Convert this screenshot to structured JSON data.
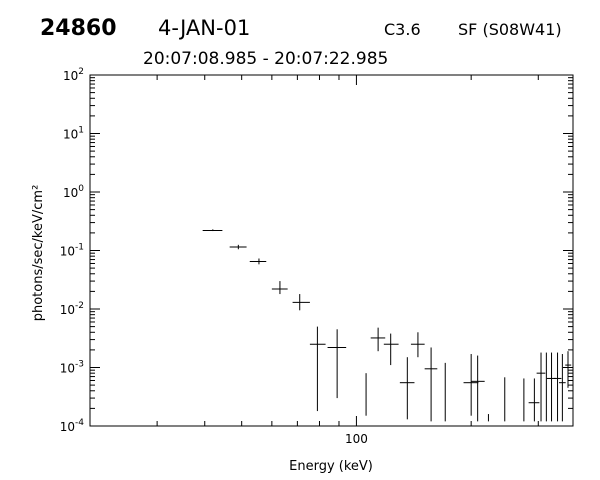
{
  "header": {
    "event_id": "24860",
    "date": "4-JAN-01",
    "goes_class": "C3.6",
    "location": "SF (S08W41)",
    "time_range": "20:07:08.985 - 20:07:22.985"
  },
  "chart_data": {
    "type": "scatter",
    "title": "",
    "xlabel": "Energy (keV)",
    "ylabel": "photons/sec/keV/cm²",
    "x_scale": "log",
    "y_scale": "log",
    "xlim": [
      20,
      370
    ],
    "ylim": [
      0.0001,
      100
    ],
    "x_ticks": [
      {
        "value": 100,
        "label": "100"
      }
    ],
    "y_ticks": [
      {
        "value": 0.0001,
        "base": "10",
        "exp": "-4"
      },
      {
        "value": 0.001,
        "base": "10",
        "exp": "-3"
      },
      {
        "value": 0.01,
        "base": "10",
        "exp": "-2"
      },
      {
        "value": 0.1,
        "base": "10",
        "exp": "-1"
      },
      {
        "value": 1,
        "base": "10",
        "exp": "0"
      },
      {
        "value": 10,
        "base": "10",
        "exp": "1"
      },
      {
        "value": 100,
        "base": "10",
        "exp": "2"
      }
    ],
    "grid": false,
    "marker": "crosshair-errorbars",
    "points": [
      {
        "x": 42,
        "xlo": 39.5,
        "xhi": 44.5,
        "y": 0.22,
        "ylo": 0.215,
        "yhi": 0.23
      },
      {
        "x": 49,
        "xlo": 46.5,
        "xhi": 51.5,
        "y": 0.115,
        "ylo": 0.105,
        "yhi": 0.125
      },
      {
        "x": 55.5,
        "xlo": 52.5,
        "xhi": 58,
        "y": 0.065,
        "ylo": 0.058,
        "yhi": 0.073
      },
      {
        "x": 63,
        "xlo": 60,
        "xhi": 66,
        "y": 0.022,
        "ylo": 0.018,
        "yhi": 0.03
      },
      {
        "x": 71,
        "xlo": 68,
        "xhi": 75.5,
        "y": 0.013,
        "ylo": 0.0095,
        "yhi": 0.018
      },
      {
        "x": 79,
        "xlo": 75.5,
        "xhi": 83,
        "y": 0.0025,
        "ylo": 0.00018,
        "yhi": 0.005
      },
      {
        "x": 89,
        "xlo": 84,
        "xhi": 94,
        "y": 0.0022,
        "ylo": 0.0003,
        "yhi": 0.0045
      },
      {
        "x": 106,
        "xlo": 106,
        "xhi": 106,
        "y": 0.0004,
        "ylo": 0.00015,
        "yhi": 0.0008
      },
      {
        "x": 114,
        "xlo": 109,
        "xhi": 119,
        "y": 0.0032,
        "ylo": 0.0019,
        "yhi": 0.0048
      },
      {
        "x": 123,
        "xlo": 118,
        "xhi": 129,
        "y": 0.0025,
        "ylo": 0.0011,
        "yhi": 0.0038
      },
      {
        "x": 136,
        "xlo": 130,
        "xhi": 142,
        "y": 0.00055,
        "ylo": 0.00013,
        "yhi": 0.0015
      },
      {
        "x": 145,
        "xlo": 139,
        "xhi": 151,
        "y": 0.0025,
        "ylo": 0.0015,
        "yhi": 0.004
      },
      {
        "x": 157,
        "xlo": 151,
        "xhi": 163,
        "y": 0.00095,
        "ylo": 0.00012,
        "yhi": 0.0022
      },
      {
        "x": 171,
        "xlo": 171,
        "xhi": 171,
        "y": 0.00035,
        "ylo": 0.00012,
        "yhi": 0.0012
      },
      {
        "x": 200,
        "xlo": 191,
        "xhi": 209,
        "y": 0.00055,
        "ylo": 0.00015,
        "yhi": 0.0017
      },
      {
        "x": 208,
        "xlo": 200,
        "xhi": 217,
        "y": 0.00058,
        "ylo": 0.00012,
        "yhi": 0.0016
      },
      {
        "x": 222,
        "xlo": 222,
        "xhi": 222,
        "y": 0.00015,
        "ylo": 0.00012,
        "yhi": 0.00016
      },
      {
        "x": 245,
        "xlo": 245,
        "xhi": 245,
        "y": 0.0003,
        "ylo": 0.00012,
        "yhi": 0.00068
      },
      {
        "x": 275,
        "xlo": 275,
        "xhi": 275,
        "y": 0.00035,
        "ylo": 0.00012,
        "yhi": 0.00065
      },
      {
        "x": 293,
        "xlo": 283,
        "xhi": 302,
        "y": 0.00025,
        "ylo": 0.00012,
        "yhi": 0.00065
      },
      {
        "x": 305,
        "xlo": 297,
        "xhi": 313,
        "y": 0.0008,
        "ylo": 0.00012,
        "yhi": 0.0018
      },
      {
        "x": 315,
        "xlo": 315,
        "xhi": 315,
        "y": 0.0004,
        "ylo": 0.00012,
        "yhi": 0.0018
      },
      {
        "x": 325,
        "xlo": 316,
        "xhi": 334,
        "y": 0.00065,
        "ylo": 0.00012,
        "yhi": 0.0018
      },
      {
        "x": 337,
        "xlo": 329,
        "xhi": 345,
        "y": 0.00065,
        "ylo": 0.00012,
        "yhi": 0.0018
      },
      {
        "x": 347,
        "xlo": 340,
        "xhi": 354,
        "y": 0.00055,
        "ylo": 0.00012,
        "yhi": 0.0017
      },
      {
        "x": 359,
        "xlo": 353,
        "xhi": 366,
        "y": 0.0011,
        "ylo": 0.00045,
        "yhi": 0.0019
      }
    ]
  }
}
